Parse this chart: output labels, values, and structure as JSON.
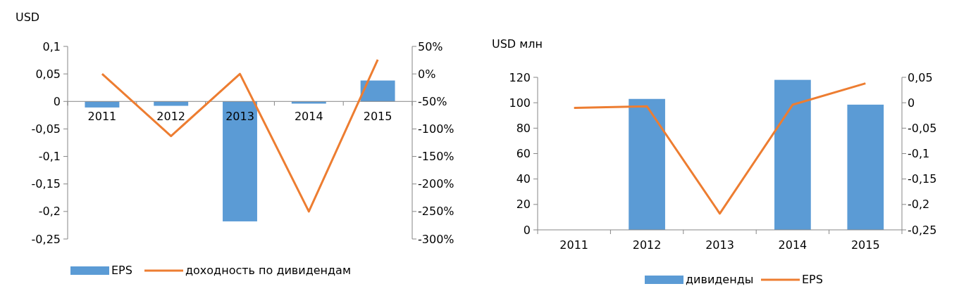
{
  "chart_data": [
    {
      "type": "bar",
      "ylabel": "USD",
      "categories": [
        "2011",
        "2012",
        "2013",
        "2014",
        "2015"
      ],
      "series": [
        {
          "name": "EPS",
          "color": "#5b9bd5",
          "values": [
            -0.011,
            -0.008,
            -0.218,
            -0.004,
            0.038
          ]
        },
        {
          "name": "доходность по дивидендам",
          "type": "line",
          "axis": "y2",
          "color": "#ed7d31",
          "values": [
            0,
            -113,
            0,
            -250,
            26
          ]
        }
      ],
      "ylim": [
        -0.25,
        0.1
      ],
      "yticks": [
        {
          "value": -0.25,
          "label": "-0,25"
        },
        {
          "value": -0.2,
          "label": "-0,2"
        },
        {
          "value": -0.15,
          "label": "-0,15"
        },
        {
          "value": -0.1,
          "label": "-0,1"
        },
        {
          "value": -0.05,
          "label": "-0,05"
        },
        0,
        {
          "value": 0.05,
          "label": "0,05"
        },
        {
          "value": 0.1,
          "label": "0,1"
        }
      ],
      "y2lim": [
        -300,
        50
      ],
      "y2ticks": [
        {
          "value": -300,
          "label": "-300%"
        },
        {
          "value": -250,
          "label": "-250%"
        },
        {
          "value": -200,
          "label": "-200%"
        },
        {
          "value": -150,
          "label": "-150%"
        },
        {
          "value": -100,
          "label": "-100%"
        },
        {
          "value": -50,
          "label": "-50%"
        },
        {
          "value": 0,
          "label": "0%"
        },
        {
          "value": 50,
          "label": "50%"
        }
      ],
      "legend": "bottom",
      "grid": false
    },
    {
      "type": "bar",
      "ylabel": "USD млн",
      "categories": [
        "2011",
        "2012",
        "2013",
        "2014",
        "2015"
      ],
      "series": [
        {
          "name": "дивиденды",
          "color": "#5b9bd5",
          "values": [
            null,
            103,
            null,
            118,
            98.5
          ]
        },
        {
          "name": "EPS",
          "type": "line",
          "axis": "y2",
          "color": "#ed7d31",
          "values": [
            -0.01,
            -0.007,
            -0.218,
            -0.004,
            0.038
          ]
        }
      ],
      "ylim": [
        0,
        120
      ],
      "yticks": [
        0,
        20,
        40,
        60,
        80,
        100,
        120
      ],
      "y2lim": [
        -0.25,
        0.05
      ],
      "y2ticks": [
        {
          "value": -0.25,
          "label": "-0,25"
        },
        {
          "value": -0.2,
          "label": "-0,2"
        },
        {
          "value": -0.15,
          "label": "-0,15"
        },
        {
          "value": -0.1,
          "label": "-0,1"
        },
        {
          "value": -0.05,
          "label": "-0,05"
        },
        0,
        {
          "value": 0.05,
          "label": "0,05"
        }
      ],
      "legend": "bottom",
      "grid": false
    }
  ]
}
